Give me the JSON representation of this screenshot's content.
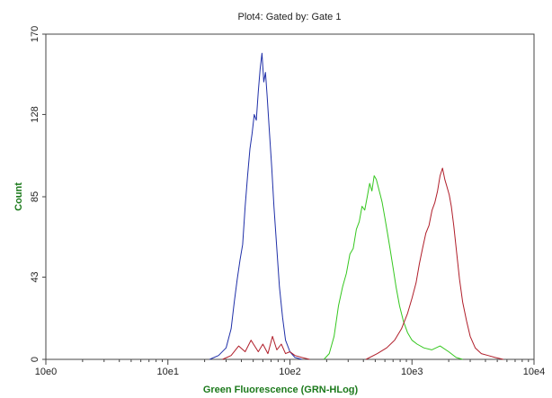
{
  "chart_data": {
    "type": "line",
    "title": "Plot4:  Gated by: Gate 1",
    "xlabel": "Green Fluorescence (GRN-HLog)",
    "ylabel": "Count",
    "x_scale": "log",
    "xlim": [
      1,
      10000
    ],
    "ylim": [
      0,
      170
    ],
    "x_ticks": [
      1,
      10,
      100,
      1000,
      10000
    ],
    "x_tick_labels": [
      "10e0",
      "10e1",
      "10e2",
      "10e3",
      "10e4"
    ],
    "y_ticks": [
      0,
      43,
      85,
      128,
      170
    ],
    "y_tick_labels": [
      "0",
      "43",
      "85",
      "128",
      "170"
    ],
    "grid": false,
    "legend": "none",
    "series": [
      {
        "color": "#1f2fa8",
        "x": [
          22,
          26,
          30,
          33,
          35,
          37,
          39,
          41,
          43,
          45,
          47,
          49,
          51,
          53,
          55,
          57,
          59,
          61,
          63,
          65,
          68,
          71,
          74,
          78,
          82,
          87,
          92,
          100,
          110,
          125
        ],
        "y": [
          0,
          2,
          6,
          16,
          30,
          42,
          52,
          60,
          80,
          96,
          110,
          118,
          128,
          125,
          140,
          152,
          160,
          145,
          150,
          138,
          118,
          100,
          80,
          58,
          38,
          22,
          10,
          4,
          1,
          0
        ]
      },
      {
        "color": "#b01e2a",
        "x": [
          28,
          33,
          38,
          43,
          48,
          55,
          60,
          66,
          72,
          78,
          85,
          92,
          100,
          110,
          125,
          145
        ],
        "y": [
          0,
          2,
          7,
          4,
          10,
          4,
          8,
          3,
          12,
          5,
          8,
          3,
          4,
          2,
          1,
          0
        ]
      },
      {
        "color": "#35c71f",
        "x": [
          190,
          210,
          230,
          250,
          270,
          290,
          310,
          330,
          350,
          370,
          390,
          410,
          430,
          450,
          470,
          490,
          510,
          530,
          550,
          570,
          600,
          630,
          660,
          700,
          740,
          790,
          850,
          920,
          1000,
          1100,
          1250,
          1450,
          1700,
          2000,
          2300,
          2600
        ],
        "y": [
          0,
          3,
          12,
          28,
          38,
          45,
          55,
          58,
          68,
          72,
          80,
          78,
          85,
          92,
          88,
          96,
          94,
          90,
          86,
          82,
          74,
          66,
          58,
          48,
          38,
          28,
          20,
          14,
          10,
          8,
          6,
          5,
          7,
          4,
          1,
          0
        ]
      },
      {
        "color": "#b01e2a",
        "x": [
          420,
          520,
          620,
          720,
          820,
          920,
          1000,
          1080,
          1150,
          1220,
          1300,
          1380,
          1460,
          1540,
          1620,
          1700,
          1780,
          1860,
          1940,
          2020,
          2100,
          2200,
          2320,
          2450,
          2600,
          2800,
          3000,
          3300,
          3700,
          4200,
          4800,
          5600
        ],
        "y": [
          0,
          3,
          6,
          10,
          16,
          24,
          32,
          40,
          50,
          58,
          66,
          70,
          78,
          82,
          88,
          96,
          100,
          94,
          90,
          86,
          80,
          70,
          56,
          42,
          30,
          20,
          12,
          6,
          3,
          2,
          1,
          0
        ]
      }
    ]
  }
}
